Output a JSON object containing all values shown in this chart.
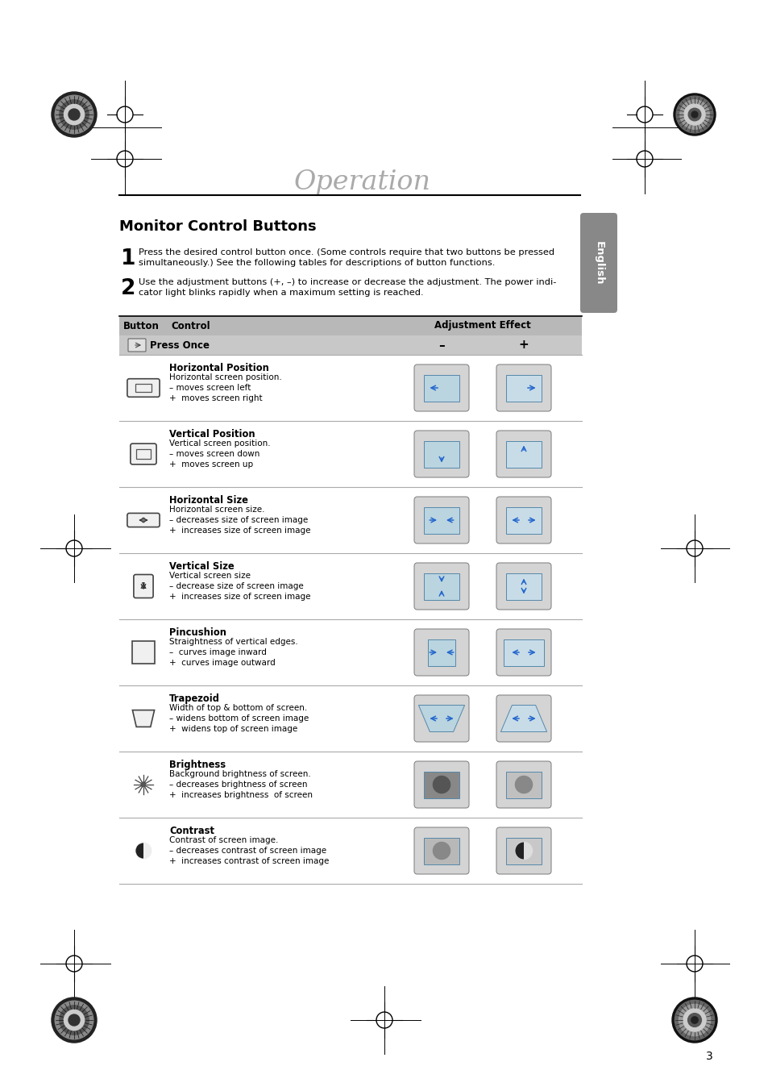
{
  "title": "Operation",
  "section_title": "Monitor Control Buttons",
  "step1_num": "1",
  "step1": "Press the desired control button once. (Some controls require that two buttons be pressed\nsimultaneously.) See the following tables for descriptions of button functions.",
  "step2_num": "2",
  "step2": "Use the adjustment buttons (+, –) to increase or decrease the adjustment. The power indi-\ncator light blinks rapidly when a maximum setting is reached.",
  "table_header_col1": "Button",
  "table_header_col2": "Control",
  "table_header_col3": "Adjustment Effect",
  "press_once_label": "Press Once",
  "minus_label": "–",
  "plus_label": "+",
  "rows": [
    {
      "control_name": "Horizontal Position",
      "control_desc": "Horizontal screen position.\n– moves screen left\n+  moves screen right",
      "icon_type": "h_pos"
    },
    {
      "control_name": "Vertical Position",
      "control_desc": "Vertical screen position.\n– moves screen down\n+  moves screen up",
      "icon_type": "v_pos"
    },
    {
      "control_name": "Horizontal Size",
      "control_desc": "Horizontal screen size.\n– decreases size of screen image\n+  increases size of screen image",
      "icon_type": "h_size"
    },
    {
      "control_name": "Vertical Size",
      "control_desc": "Vertical screen size\n– decrease size of screen image\n+  increases size of screen image",
      "icon_type": "v_size"
    },
    {
      "control_name": "Pincushion",
      "control_desc": "Straightness of vertical edges.\n–  curves image inward\n+  curves image outward",
      "icon_type": "pincushion"
    },
    {
      "control_name": "Trapezoid",
      "control_desc": "Width of top & bottom of screen.\n– widens bottom of screen image\n+  widens top of screen image",
      "icon_type": "trapezoid"
    },
    {
      "control_name": "Brightness",
      "control_desc": "Background brightness of screen.\n– decreases brightness of screen\n+  increases brightness  of screen",
      "icon_type": "brightness"
    },
    {
      "control_name": "Contrast",
      "control_desc": "Contrast of screen image.\n– decreases contrast of screen image\n+  increases contrast of screen image",
      "icon_type": "contrast"
    }
  ],
  "bg_color": "#ffffff",
  "table_header_bg": "#b8b8b8",
  "press_once_bg": "#c8c8c8",
  "row_line_color": "#aaaaaa",
  "title_color": "#aaaaaa",
  "english_tab_color": "#888888",
  "page_number": "3"
}
